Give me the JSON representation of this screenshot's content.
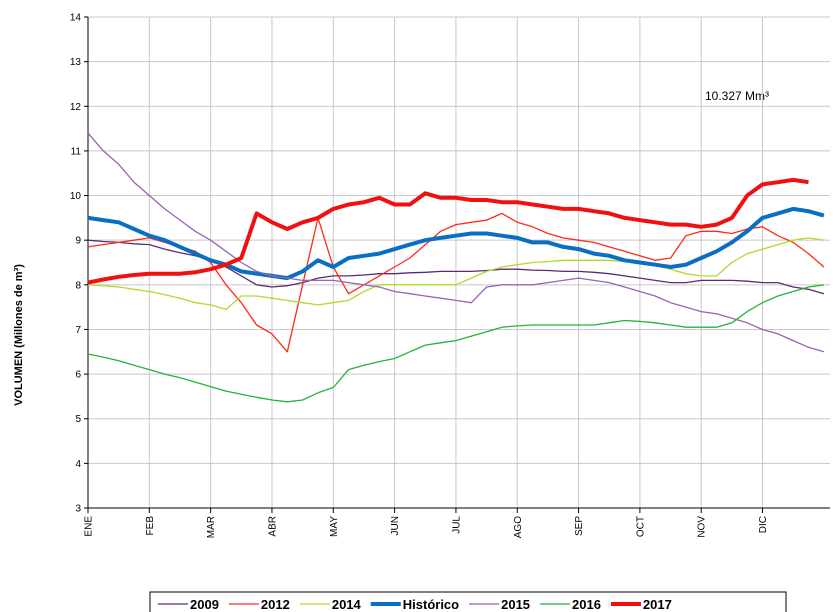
{
  "chart_data": {
    "type": "line",
    "y_label": "VOLUMEN (Millones de m³)",
    "annotation": "10.327 Mm³",
    "xlim": [
      0,
      12.1
    ],
    "xticks": [
      {
        "value": 0,
        "label": "ENE"
      },
      {
        "value": 1,
        "label": "FEB"
      },
      {
        "value": 2,
        "label": "MAR"
      },
      {
        "value": 3,
        "label": "ABR"
      },
      {
        "value": 4,
        "label": "MAY"
      },
      {
        "value": 5,
        "label": "JUN"
      },
      {
        "value": 6,
        "label": "JUL"
      },
      {
        "value": 7,
        "label": "AGO"
      },
      {
        "value": 8,
        "label": "SEP"
      },
      {
        "value": 9,
        "label": "OCT"
      },
      {
        "value": 10,
        "label": "NOV"
      },
      {
        "value": 11,
        "label": "DIC"
      }
    ],
    "ylim": [
      3,
      14
    ],
    "yticks": [
      3,
      4,
      5,
      6,
      7,
      8,
      9,
      10,
      11,
      12,
      13,
      14
    ],
    "grid": true,
    "legend": "bottom",
    "x": [
      0,
      0.25,
      0.5,
      0.75,
      1,
      1.25,
      1.5,
      1.75,
      2,
      2.25,
      2.5,
      2.75,
      3,
      3.25,
      3.5,
      3.75,
      4,
      4.25,
      4.5,
      4.75,
      5,
      5.25,
      5.5,
      5.75,
      6,
      6.25,
      6.5,
      6.75,
      7,
      7.25,
      7.5,
      7.75,
      8,
      8.25,
      8.5,
      8.75,
      9,
      9.25,
      9.5,
      9.75,
      10,
      10.25,
      10.5,
      10.75,
      11,
      11.25,
      11.5,
      11.75,
      12
    ],
    "series": [
      {
        "name": "2009",
        "color": "#5b2c6f",
        "width": 1.3,
        "values": [
          9.0,
          8.97,
          8.95,
          8.92,
          8.9,
          8.8,
          8.72,
          8.65,
          8.55,
          8.4,
          8.2,
          8.0,
          7.95,
          7.98,
          8.05,
          8.15,
          8.2,
          8.2,
          8.22,
          8.25,
          8.25,
          8.27,
          8.28,
          8.3,
          8.3,
          8.3,
          8.32,
          8.35,
          8.35,
          8.33,
          8.32,
          8.3,
          8.3,
          8.28,
          8.25,
          8.2,
          8.15,
          8.1,
          8.05,
          8.05,
          8.1,
          8.1,
          8.1,
          8.08,
          8.05,
          8.05,
          7.95,
          7.9,
          7.8
        ]
      },
      {
        "name": "2012",
        "color": "#ff2a1a",
        "width": 1.3,
        "values": [
          8.85,
          8.9,
          8.95,
          9.0,
          9.05,
          8.95,
          8.85,
          8.75,
          8.5,
          8.0,
          7.6,
          7.1,
          6.9,
          6.5,
          8.0,
          9.5,
          8.4,
          7.8,
          8.0,
          8.2,
          8.4,
          8.6,
          8.9,
          9.2,
          9.35,
          9.4,
          9.45,
          9.6,
          9.4,
          9.3,
          9.15,
          9.05,
          9.0,
          8.95,
          8.85,
          8.75,
          8.65,
          8.55,
          8.6,
          9.1,
          9.2,
          9.2,
          9.15,
          9.25,
          9.3,
          9.1,
          8.95,
          8.7,
          8.4
        ]
      },
      {
        "name": "2014",
        "color": "#b5d82a",
        "width": 1.3,
        "values": [
          8.0,
          7.98,
          7.95,
          7.9,
          7.85,
          7.78,
          7.7,
          7.6,
          7.55,
          7.45,
          7.75,
          7.75,
          7.7,
          7.65,
          7.6,
          7.55,
          7.6,
          7.65,
          7.85,
          8.0,
          8.0,
          8.0,
          8.0,
          8.0,
          8.0,
          8.15,
          8.3,
          8.4,
          8.45,
          8.5,
          8.52,
          8.55,
          8.55,
          8.55,
          8.55,
          8.52,
          8.5,
          8.45,
          8.35,
          8.25,
          8.2,
          8.2,
          8.5,
          8.7,
          8.8,
          8.9,
          9.0,
          9.05,
          9.0
        ]
      },
      {
        "name": "Histórico",
        "color": "#0a6fc2",
        "width": 4,
        "values": [
          9.5,
          9.45,
          9.4,
          9.25,
          9.1,
          9.0,
          8.85,
          8.7,
          8.55,
          8.45,
          8.3,
          8.25,
          8.2,
          8.15,
          8.3,
          8.55,
          8.4,
          8.6,
          8.65,
          8.7,
          8.8,
          8.9,
          9.0,
          9.05,
          9.1,
          9.15,
          9.15,
          9.1,
          9.05,
          8.95,
          8.95,
          8.85,
          8.8,
          8.7,
          8.65,
          8.55,
          8.5,
          8.45,
          8.4,
          8.45,
          8.6,
          8.75,
          8.95,
          9.2,
          9.5,
          9.6,
          9.7,
          9.65,
          9.55
        ]
      },
      {
        "name": "2015",
        "color": "#9a62b3",
        "width": 1.3,
        "values": [
          11.4,
          11.0,
          10.7,
          10.3,
          10.0,
          9.7,
          9.45,
          9.2,
          9.0,
          8.75,
          8.5,
          8.3,
          8.2,
          8.15,
          8.1,
          8.1,
          8.1,
          8.05,
          8.0,
          7.95,
          7.85,
          7.8,
          7.75,
          7.7,
          7.65,
          7.6,
          7.95,
          8.0,
          8.0,
          8.0,
          8.05,
          8.1,
          8.15,
          8.1,
          8.05,
          7.95,
          7.85,
          7.75,
          7.6,
          7.5,
          7.4,
          7.35,
          7.25,
          7.15,
          7.0,
          6.9,
          6.75,
          6.6,
          6.5
        ]
      },
      {
        "name": "2016",
        "color": "#22b43a",
        "width": 1.3,
        "values": [
          6.45,
          6.38,
          6.3,
          6.2,
          6.1,
          6.0,
          5.92,
          5.82,
          5.72,
          5.62,
          5.55,
          5.48,
          5.42,
          5.38,
          5.42,
          5.58,
          5.7,
          6.1,
          6.2,
          6.28,
          6.35,
          6.5,
          6.65,
          6.7,
          6.75,
          6.85,
          6.95,
          7.05,
          7.08,
          7.1,
          7.1,
          7.1,
          7.1,
          7.1,
          7.15,
          7.2,
          7.18,
          7.15,
          7.1,
          7.05,
          7.05,
          7.05,
          7.15,
          7.4,
          7.6,
          7.75,
          7.85,
          7.95,
          8.0
        ]
      },
      {
        "name": "2017",
        "color": "#f01010",
        "width": 4,
        "values": [
          8.05,
          8.12,
          8.18,
          8.22,
          8.25,
          8.25,
          8.25,
          8.28,
          8.35,
          8.45,
          8.6,
          9.6,
          9.4,
          9.25,
          9.4,
          9.5,
          9.7,
          9.8,
          9.85,
          9.95,
          9.8,
          9.8,
          10.05,
          9.95,
          9.95,
          9.9,
          9.9,
          9.85,
          9.85,
          9.8,
          9.75,
          9.7,
          9.7,
          9.65,
          9.6,
          9.5,
          9.45,
          9.4,
          9.35,
          9.35,
          9.3,
          9.35,
          9.5,
          10.0,
          10.25,
          10.3,
          10.35,
          10.3,
          null
        ]
      }
    ]
  }
}
